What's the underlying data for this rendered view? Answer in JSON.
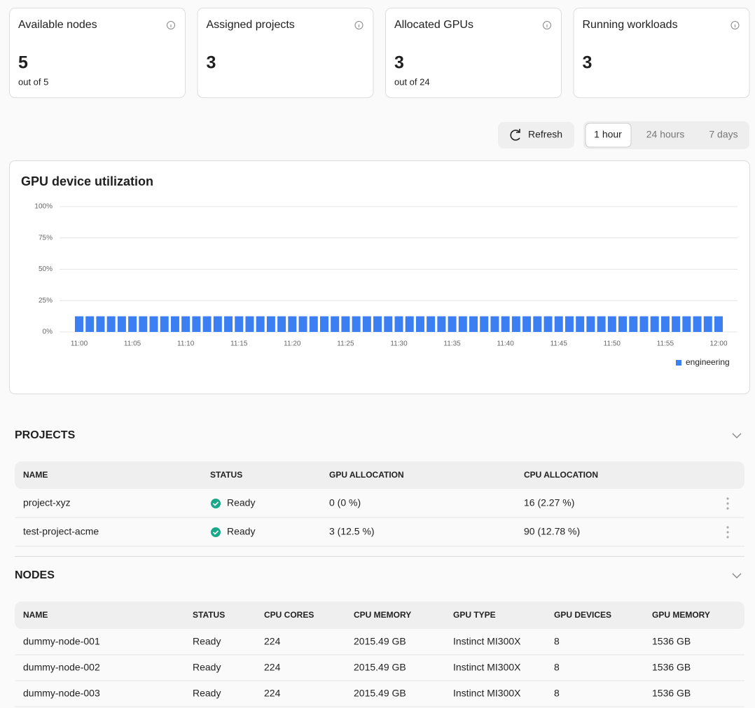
{
  "cards": [
    {
      "label": "Available nodes",
      "value": 5,
      "sub": "out of 5"
    },
    {
      "label": "Assigned projects",
      "value": 3
    },
    {
      "label": "Allocated GPUs",
      "value": 3,
      "sub": "out of 24"
    },
    {
      "label": "Running workloads",
      "value": 3
    }
  ],
  "toolbar": {
    "refresh": "Refresh",
    "ranges": [
      "1 hour",
      "24 hours",
      "7 days"
    ]
  },
  "chart_data": {
    "type": "bar",
    "title": "GPU device utilization",
    "categories": [
      "11:00",
      null,
      null,
      null,
      null,
      "11:05",
      null,
      null,
      null,
      null,
      "11:10",
      null,
      null,
      null,
      null,
      "11:15",
      null,
      null,
      null,
      null,
      "11:20",
      null,
      null,
      null,
      null,
      "11:25",
      null,
      null,
      null,
      null,
      "11:30",
      null,
      null,
      null,
      null,
      "11:35",
      null,
      null,
      null,
      null,
      "11:40",
      null,
      null,
      null,
      null,
      "11:45",
      null,
      null,
      null,
      null,
      "11:50",
      null,
      null,
      null,
      null,
      "11:55",
      null,
      null,
      null,
      null,
      "12:00"
    ],
    "series": [
      {
        "name": "engineering",
        "color": "#3b7ff2",
        "values": [
          12.5,
          12.5,
          12.5,
          12.5,
          12.5,
          12.5,
          12.5,
          12.5,
          12.5,
          12.5,
          12.5,
          12.5,
          12.5,
          12.5,
          12.5,
          12.5,
          12.5,
          12.5,
          12.5,
          12.5,
          12.5,
          12.5,
          12.5,
          12.5,
          12.5,
          12.5,
          12.5,
          12.5,
          12.5,
          12.5,
          12.5,
          12.5,
          12.5,
          12.5,
          12.5,
          12.5,
          12.5,
          12.5,
          12.5,
          12.5,
          12.5,
          12.5,
          12.5,
          12.5,
          12.5,
          12.5,
          12.5,
          12.5,
          12.5,
          12.5,
          12.5,
          12.5,
          12.5,
          12.5,
          12.5,
          12.5,
          12.5,
          12.5,
          12.5,
          12.5,
          12.5
        ]
      }
    ],
    "ylim": [
      0,
      100
    ],
    "yticks": [
      {
        "value": 0,
        "label": "0%"
      },
      {
        "value": 25,
        "label": "25%"
      },
      {
        "value": 50,
        "label": "50%"
      },
      {
        "value": 75,
        "label": "75%"
      },
      {
        "value": 100,
        "label": "100%"
      }
    ],
    "grid": true,
    "legend": "bottom-right"
  },
  "projects": {
    "title": "PROJECTS",
    "columns": [
      "NAME",
      "STATUS",
      "GPU ALLOCATION",
      "CPU ALLOCATION"
    ],
    "rows": [
      [
        "project-xyz",
        "Ready",
        "0 (0 %)",
        "16 (2.27 %)"
      ],
      [
        "test-project-acme",
        "Ready",
        "3 (12.5 %)",
        "90 (12.78 %)"
      ]
    ]
  },
  "nodes": {
    "title": "NODES",
    "columns": [
      "NAME",
      "STATUS",
      "CPU CORES",
      "CPU MEMORY",
      "GPU TYPE",
      "GPU DEVICES",
      "GPU MEMORY"
    ],
    "rows": [
      [
        "dummy-node-001",
        "Ready",
        224,
        "2015.49 GB",
        "Instinct MI300X",
        8,
        "1536 GB"
      ],
      [
        "dummy-node-002",
        "Ready",
        224,
        "2015.49 GB",
        "Instinct MI300X",
        8,
        "1536 GB"
      ],
      [
        "dummy-node-003",
        "Ready",
        224,
        "2015.49 GB",
        "Instinct MI300X",
        8,
        "1536 GB"
      ]
    ]
  }
}
